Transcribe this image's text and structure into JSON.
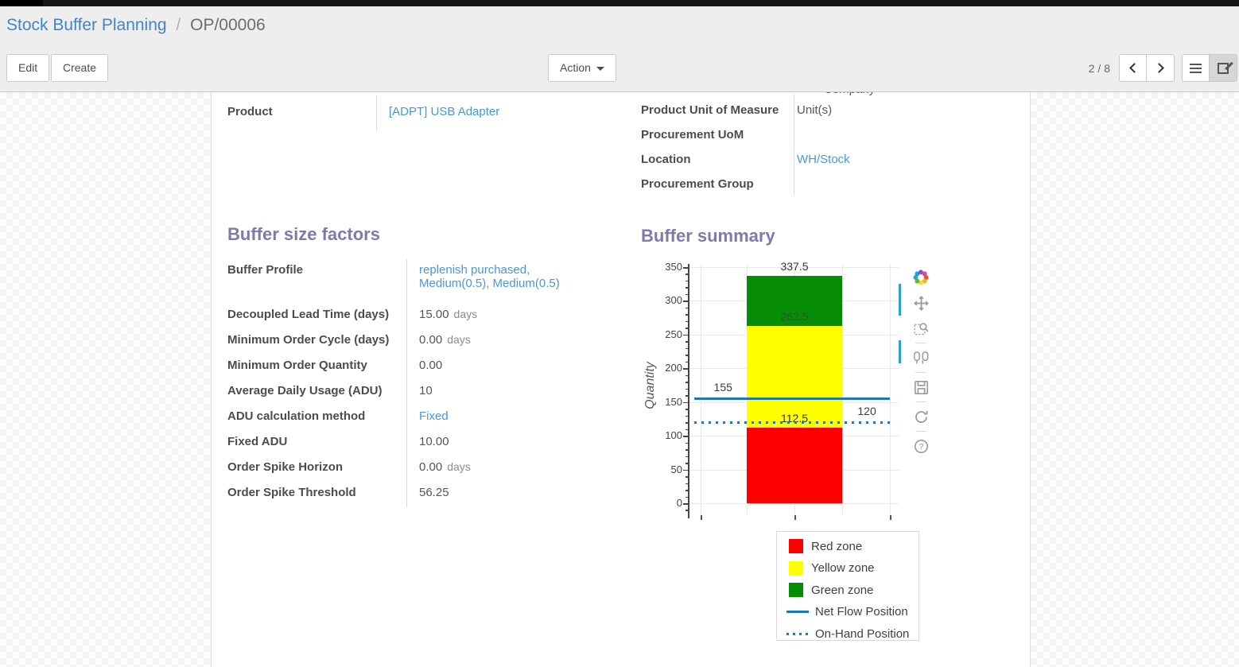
{
  "breadcrumb": {
    "parent": "Stock Buffer Planning",
    "separator": "/",
    "current": "OP/00006"
  },
  "control_panel": {
    "edit_label": "Edit",
    "create_label": "Create",
    "action_label": "Action",
    "pager_text": "2 / 8"
  },
  "sheet": {
    "clipped_fragment": "Company",
    "general_fields_left": [
      {
        "label": "Product",
        "value": "[ADPT] USB Adapter",
        "link": true
      }
    ],
    "general_fields_right": [
      {
        "label": "Product Unit of Measure",
        "value": "Unit(s)",
        "link": false
      },
      {
        "label": "Procurement UoM",
        "value": "",
        "link": false
      },
      {
        "label": "Location",
        "value": "WH/Stock",
        "link": true
      },
      {
        "label": "Procurement Group",
        "value": "",
        "link": false
      }
    ],
    "buffer_size_factors": {
      "title": "Buffer size factors",
      "fields": [
        {
          "label": "Buffer Profile",
          "value": "replenish purchased, Medium(0.5), Medium(0.5)",
          "link": true,
          "tall": true
        },
        {
          "label": "Decoupled Lead Time (days)",
          "value": "15.00",
          "unit": "days"
        },
        {
          "label": "Minimum Order Cycle (days)",
          "value": "0.00",
          "unit": "days"
        },
        {
          "label": "Minimum Order Quantity",
          "value": "0.00"
        },
        {
          "label": "Average Daily Usage (ADU)",
          "value": "10"
        },
        {
          "label": "ADU calculation method",
          "value": "Fixed",
          "link": true
        },
        {
          "label": "Fixed ADU",
          "value": "10.00"
        },
        {
          "label": "Order Spike Horizon",
          "value": "0.00",
          "unit": "days"
        },
        {
          "label": "Order Spike Threshold",
          "value": "56.25"
        }
      ]
    },
    "buffer_summary_title": "Buffer summary"
  },
  "chart_data": {
    "type": "bar",
    "title": "Buffer summary",
    "xlabel": "",
    "ylabel": "Quantity",
    "ylim": [
      0,
      350
    ],
    "ytick_step": 50,
    "ytick_minor_step": 10,
    "grid": true,
    "zones": [
      {
        "name": "Red zone",
        "from": 0,
        "to": 112.5,
        "color": "#ff0000",
        "label": "112.5",
        "label_color": "#333333"
      },
      {
        "name": "Yellow zone",
        "from": 112.5,
        "to": 262.5,
        "color": "#ffff00",
        "label": "262.5",
        "label_color": "rgba(45,65,45,0.55)"
      },
      {
        "name": "Green zone",
        "from": 262.5,
        "to": 337.5,
        "color": "#078c07",
        "label": "337.5",
        "label_color": "#333333"
      }
    ],
    "lines": [
      {
        "name": "Net Flow Position",
        "value": 155,
        "style": "solid",
        "color": "#1f77b4",
        "label": "155",
        "label_x": 0.16
      },
      {
        "name": "On-Hand Position",
        "value": 120,
        "style": "dotted",
        "color": "#1f77b4",
        "label": "120",
        "label_x": 0.845
      }
    ],
    "legend": [
      {
        "label": "Red zone",
        "swatch": "square",
        "color": "#ff0000"
      },
      {
        "label": "Yellow zone",
        "swatch": "square",
        "color": "#ffff00"
      },
      {
        "label": "Green zone",
        "swatch": "square",
        "color": "#078c07"
      },
      {
        "label": "Net Flow Position",
        "swatch": "line",
        "color": "#1f77b4"
      },
      {
        "label": "On-Hand Position",
        "swatch": "dotted-line",
        "color": "#1f77b4"
      }
    ],
    "legend_position": "bottom-right"
  },
  "modebar_icons": [
    "plotly-logo",
    "pan",
    "box-zoom",
    "hover-compare",
    "save",
    "reset-axes",
    "help"
  ],
  "colors": {
    "accent_purple": "#7c7bad",
    "link_blue": "#4898d8",
    "breadcrumb_blue": "#4484c4",
    "flow_line_blue": "#1f77b4",
    "topbar_black": "#161616"
  }
}
